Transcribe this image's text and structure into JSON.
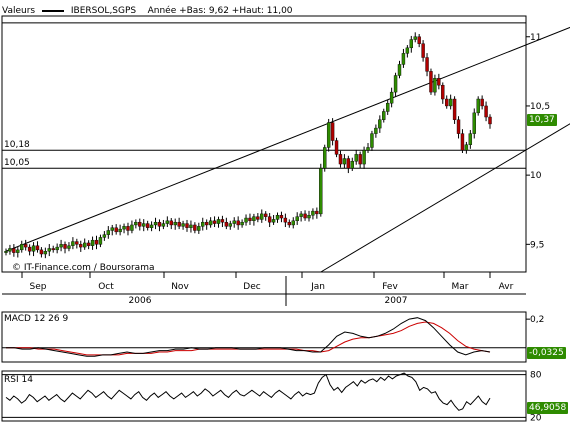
{
  "header": {
    "label": "Valeurs",
    "series_name": "IBERSOL,SGPS",
    "year_stats": "Année +Bas: 9,62 +Haut: 11,00"
  },
  "credit": "© IT-Finance.com / Boursorama",
  "colors": {
    "up": "#2e8b00",
    "down": "#b00000",
    "macd_signal": "#cc0000",
    "tag_bg": "#2e8b00"
  },
  "chart_data": [
    {
      "type": "candlestick",
      "x_months": [
        "Sep",
        "Oct",
        "Nov",
        "Dec",
        "Jan",
        "Fev",
        "Mar",
        "Avr"
      ],
      "x_years": [
        "2006",
        "2007"
      ],
      "y_ticks": [
        "11",
        "10,5",
        "10",
        "9,5"
      ],
      "ylim": [
        9.3,
        11.15
      ],
      "last_value": "10,37",
      "level_labels": [
        "10,18",
        "10,05"
      ],
      "levels": [
        11.1,
        10.18,
        10.05
      ],
      "trendlines": [
        {
          "from": [
            0,
            9.45
          ],
          "to": [
            148,
            11.12
          ]
        },
        {
          "from": [
            80,
            9.3
          ],
          "to": [
            148,
            10.45
          ]
        }
      ],
      "closes": [
        9.45,
        9.47,
        9.44,
        9.46,
        9.5,
        9.48,
        9.45,
        9.49,
        9.46,
        9.43,
        9.45,
        9.47,
        9.46,
        9.48,
        9.5,
        9.47,
        9.49,
        9.52,
        9.5,
        9.48,
        9.51,
        9.49,
        9.53,
        9.5,
        9.55,
        9.57,
        9.6,
        9.62,
        9.59,
        9.61,
        9.63,
        9.6,
        9.64,
        9.66,
        9.63,
        9.65,
        9.62,
        9.64,
        9.66,
        9.63,
        9.65,
        9.67,
        9.64,
        9.66,
        9.63,
        9.65,
        9.62,
        9.64,
        9.6,
        9.63,
        9.66,
        9.64,
        9.67,
        9.65,
        9.68,
        9.66,
        9.63,
        9.65,
        9.67,
        9.64,
        9.66,
        9.69,
        9.67,
        9.7,
        9.68,
        9.72,
        9.7,
        9.66,
        9.68,
        9.71,
        9.69,
        9.66,
        9.64,
        9.67,
        9.7,
        9.72,
        9.69,
        9.71,
        9.74,
        9.72,
        10.05,
        10.2,
        10.38,
        10.25,
        10.15,
        10.08,
        10.12,
        10.05,
        10.1,
        10.15,
        10.08,
        10.18,
        10.2,
        10.3,
        10.34,
        10.4,
        10.46,
        10.52,
        10.6,
        10.72,
        10.8,
        10.88,
        10.92,
        10.98,
        11.0,
        10.95,
        10.85,
        10.75,
        10.6,
        10.7,
        10.65,
        10.55,
        10.5,
        10.55,
        10.4,
        10.3,
        10.18,
        10.22,
        10.3,
        10.45,
        10.55,
        10.5,
        10.42,
        10.37
      ]
    },
    {
      "type": "line",
      "name": "MACD 12 26 9",
      "y_ticks": [
        "0,2",
        "0"
      ],
      "ylim": [
        -0.1,
        0.25
      ],
      "last_value": "-0,0325",
      "series_macd": [
        0.0,
        0.0,
        -0.01,
        -0.01,
        0.0,
        -0.01,
        -0.02,
        -0.03,
        -0.04,
        -0.05,
        -0.06,
        -0.06,
        -0.05,
        -0.05,
        -0.04,
        -0.03,
        -0.04,
        -0.04,
        -0.03,
        -0.02,
        -0.02,
        -0.01,
        -0.01,
        0.0,
        -0.01,
        -0.01,
        0.0,
        0.0,
        0.0,
        -0.01,
        -0.01,
        -0.01,
        0.0,
        0.0,
        0.0,
        -0.01,
        -0.02,
        -0.02,
        -0.03,
        -0.03,
        0.02,
        0.08,
        0.11,
        0.1,
        0.08,
        0.07,
        0.08,
        0.1,
        0.13,
        0.17,
        0.2,
        0.21,
        0.19,
        0.14,
        0.08,
        0.02,
        -0.03,
        -0.05,
        -0.03,
        -0.02,
        -0.03
      ],
      "series_signal": [
        0.0,
        0.0,
        0.0,
        0.0,
        -0.01,
        -0.01,
        -0.01,
        -0.02,
        -0.03,
        -0.04,
        -0.05,
        -0.05,
        -0.05,
        -0.05,
        -0.05,
        -0.04,
        -0.04,
        -0.04,
        -0.04,
        -0.03,
        -0.03,
        -0.02,
        -0.02,
        -0.02,
        -0.01,
        -0.01,
        -0.01,
        -0.01,
        -0.01,
        -0.01,
        -0.01,
        -0.01,
        -0.01,
        -0.01,
        -0.01,
        -0.01,
        -0.01,
        -0.02,
        -0.02,
        -0.03,
        -0.02,
        0.01,
        0.04,
        0.06,
        0.07,
        0.07,
        0.08,
        0.09,
        0.1,
        0.12,
        0.15,
        0.17,
        0.18,
        0.17,
        0.14,
        0.1,
        0.05,
        0.01,
        -0.01,
        -0.02,
        -0.03
      ]
    },
    {
      "type": "line",
      "name": "RSI 14",
      "y_ticks": [
        "80",
        "20"
      ],
      "ylim": [
        15,
        85
      ],
      "last_value": "46,9058",
      "series": [
        48,
        44,
        50,
        46,
        40,
        44,
        52,
        48,
        42,
        46,
        50,
        44,
        48,
        52,
        46,
        42,
        48,
        54,
        50,
        46,
        52,
        58,
        54,
        48,
        52,
        56,
        50,
        46,
        52,
        58,
        54,
        50,
        46,
        52,
        56,
        48,
        44,
        50,
        54,
        48,
        52,
        56,
        50,
        46,
        50,
        54,
        48,
        52,
        56,
        50,
        54,
        60,
        56,
        50,
        54,
        58,
        52,
        48,
        54,
        58,
        52,
        50,
        54,
        58,
        54,
        50,
        56,
        52,
        48,
        54,
        58,
        54,
        50,
        46,
        52,
        56,
        50,
        54,
        52,
        54,
        68,
        76,
        80,
        66,
        58,
        62,
        55,
        62,
        66,
        70,
        64,
        72,
        68,
        72,
        74,
        70,
        76,
        72,
        78,
        74,
        78,
        80,
        82,
        78,
        76,
        70,
        58,
        62,
        60,
        54,
        56,
        46,
        40,
        38,
        44,
        36,
        30,
        32,
        42,
        38,
        44,
        50,
        42,
        38,
        47
      ]
    }
  ]
}
